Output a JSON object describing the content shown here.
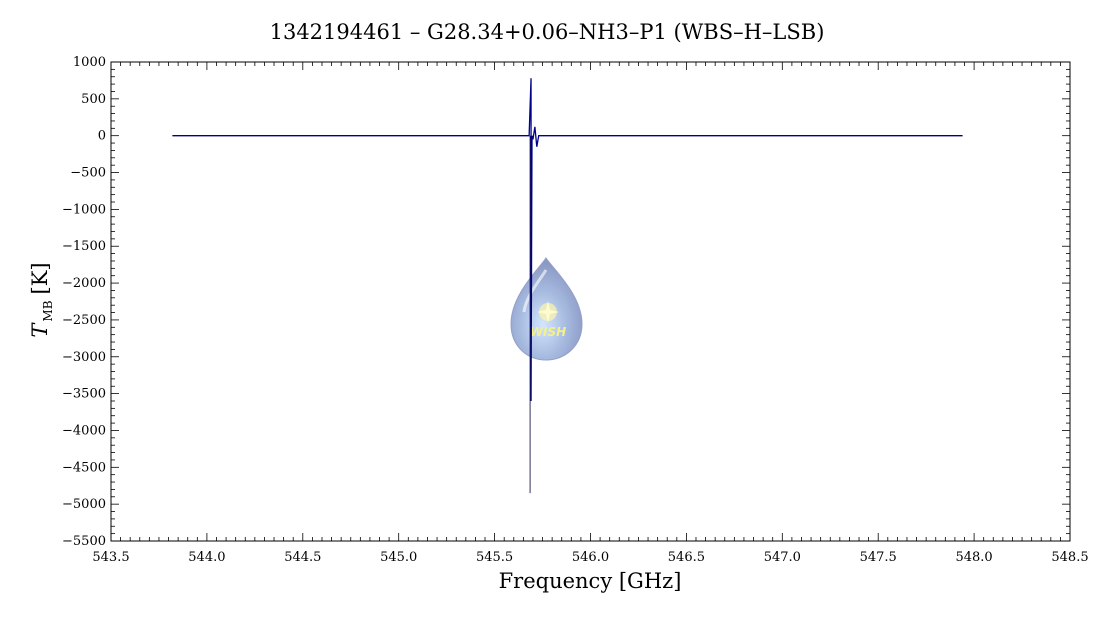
{
  "chart_data": {
    "type": "line",
    "title": "1342194461 – G28.34+0.06–NH3–P1 (WBS–H–LSB)",
    "xlabel": "Frequency [GHz]",
    "ylabel_main": "T",
    "ylabel_sub": "MB",
    "ylabel_unit": "[K]",
    "xlim": [
      543.5,
      548.5
    ],
    "ylim": [
      -5500,
      1000
    ],
    "x_ticks": [
      543.5,
      544.0,
      544.5,
      545.0,
      545.5,
      546.0,
      546.5,
      547.0,
      547.5,
      548.0,
      548.5
    ],
    "x_tick_labels": [
      "543.5",
      "544.0",
      "544.5",
      "545.0",
      "545.5",
      "546.0",
      "546.5",
      "547.0",
      "547.5",
      "548.0",
      "548.5"
    ],
    "y_ticks": [
      1000,
      500,
      0,
      -500,
      -1000,
      -1500,
      -2000,
      -2500,
      -3000,
      -3500,
      -4000,
      -4500,
      -5000,
      -5500
    ],
    "y_tick_labels": [
      "1000",
      "500",
      "0",
      "−500",
      "−1000",
      "−1500",
      "−2000",
      "−2500",
      "−3000",
      "−3500",
      "−4000",
      "−4500",
      "−5000",
      "−5500"
    ],
    "series": [
      {
        "color": "#00008b",
        "x": [
          543.82,
          545.68,
          545.69,
          545.69,
          545.695,
          545.7,
          545.71,
          545.72,
          545.73,
          547.94
        ],
        "y": [
          0,
          0,
          780,
          -3600,
          0,
          -50,
          120,
          -150,
          0,
          0
        ]
      },
      {
        "color": "#1a1a4a",
        "x": [
          545.685,
          545.685,
          545.685
        ],
        "y": [
          0,
          -4850,
          0
        ]
      }
    ],
    "watermark_text": "WISH",
    "watermark_position": "center"
  }
}
